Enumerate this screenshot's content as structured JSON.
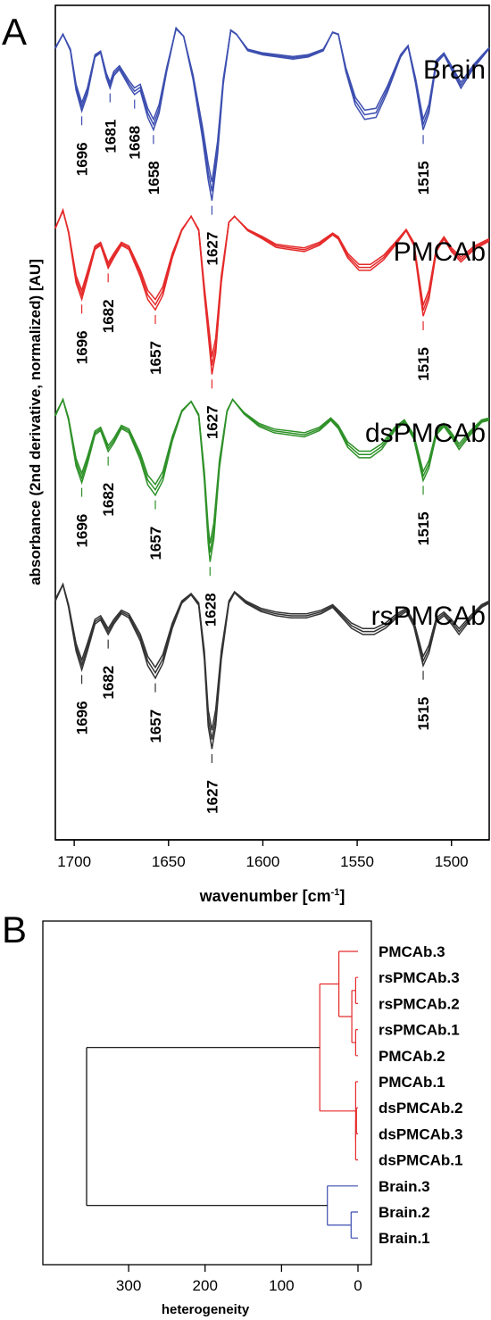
{
  "chart_data": [
    {
      "panel": "A",
      "type": "line",
      "xlabel": "wavenumber [cm",
      "xlabel_sup": "-1",
      "xlabel_end": "]",
      "ylabel": "absorbance (2nd derivative, normalized) [AU]",
      "xlim": [
        1710,
        1480
      ],
      "x_ticks": [
        1700,
        1650,
        1600,
        1550,
        1500
      ],
      "x_reversed": true,
      "grid": false,
      "series": [
        {
          "name": "Brain",
          "color": "#3d4fb0",
          "replicates": 3,
          "points": [
            [
              1710,
              0.55
            ],
            [
              1706,
              0.9
            ],
            [
              1702,
              0.5
            ],
            [
              1699,
              -0.45
            ],
            [
              1696,
              -0.95
            ],
            [
              1693,
              -0.55
            ],
            [
              1689,
              0.35
            ],
            [
              1686,
              0.45
            ],
            [
              1683,
              -0.15
            ],
            [
              1681,
              -0.4
            ],
            [
              1679,
              -0.1
            ],
            [
              1676,
              0.05
            ],
            [
              1671,
              -0.35
            ],
            [
              1668,
              -0.55
            ],
            [
              1665,
              -0.45
            ],
            [
              1661,
              -1.1
            ],
            [
              1658,
              -1.4
            ],
            [
              1655,
              -1.0
            ],
            [
              1651,
              0.0
            ],
            [
              1646,
              1.05
            ],
            [
              1642,
              0.85
            ],
            [
              1637,
              -0.2
            ],
            [
              1632,
              -1.6
            ],
            [
              1629,
              -2.6
            ],
            [
              1627,
              -3.1
            ],
            [
              1624,
              -2.0
            ],
            [
              1621,
              -0.3
            ],
            [
              1617,
              1.0
            ],
            [
              1614,
              0.9
            ],
            [
              1608,
              0.5
            ],
            [
              1600,
              0.4
            ],
            [
              1592,
              0.35
            ],
            [
              1584,
              0.3
            ],
            [
              1576,
              0.35
            ],
            [
              1568,
              0.5
            ],
            [
              1563,
              0.95
            ],
            [
              1560,
              0.9
            ],
            [
              1556,
              0.0
            ],
            [
              1551,
              -0.8
            ],
            [
              1546,
              -1.15
            ],
            [
              1540,
              -1.1
            ],
            [
              1534,
              -0.5
            ],
            [
              1527,
              0.35
            ],
            [
              1523,
              0.6
            ],
            [
              1519,
              -0.3
            ],
            [
              1515,
              -1.4
            ],
            [
              1512,
              -1.0
            ],
            [
              1508,
              0.2
            ],
            [
              1504,
              0.4
            ],
            [
              1500,
              0.05
            ],
            [
              1495,
              -0.4
            ],
            [
              1488,
              0.1
            ],
            [
              1480,
              0.55
            ]
          ],
          "peaks": [
            1696,
            1681,
            1668,
            1658,
            1627,
            1515
          ]
        },
        {
          "name": "PMCAb",
          "color": "#e52a2a",
          "replicates": 3,
          "points": [
            [
              1710,
              0.6
            ],
            [
              1706,
              1.05
            ],
            [
              1703,
              0.5
            ],
            [
              1699,
              -0.7
            ],
            [
              1696,
              -1.1
            ],
            [
              1693,
              -0.6
            ],
            [
              1689,
              0.1
            ],
            [
              1686,
              0.2
            ],
            [
              1682,
              -0.35
            ],
            [
              1679,
              -0.1
            ],
            [
              1675,
              0.2
            ],
            [
              1671,
              0.1
            ],
            [
              1665,
              -0.55
            ],
            [
              1661,
              -1.1
            ],
            [
              1657,
              -1.35
            ],
            [
              1653,
              -1.0
            ],
            [
              1648,
              -0.1
            ],
            [
              1643,
              0.55
            ],
            [
              1638,
              0.9
            ],
            [
              1634,
              0.55
            ],
            [
              1631,
              -1.0
            ],
            [
              1628,
              -2.4
            ],
            [
              1627,
              -2.9
            ],
            [
              1625,
              -2.4
            ],
            [
              1622,
              -0.7
            ],
            [
              1618,
              0.75
            ],
            [
              1615,
              0.9
            ],
            [
              1608,
              0.55
            ],
            [
              1600,
              0.35
            ],
            [
              1593,
              0.15
            ],
            [
              1586,
              0.1
            ],
            [
              1578,
              0.05
            ],
            [
              1570,
              0.2
            ],
            [
              1563,
              0.45
            ],
            [
              1560,
              0.35
            ],
            [
              1555,
              -0.1
            ],
            [
              1549,
              -0.4
            ],
            [
              1543,
              -0.4
            ],
            [
              1536,
              -0.15
            ],
            [
              1529,
              0.25
            ],
            [
              1524,
              0.55
            ],
            [
              1520,
              0.2
            ],
            [
              1515,
              -1.5
            ],
            [
              1512,
              -1.1
            ],
            [
              1508,
              0.05
            ],
            [
              1504,
              0.35
            ],
            [
              1500,
              0.05
            ],
            [
              1495,
              -0.2
            ],
            [
              1488,
              0.1
            ],
            [
              1480,
              0.3
            ]
          ],
          "peaks": [
            1696,
            1682,
            1657,
            1627,
            1515
          ]
        },
        {
          "name": "dsPMCAb",
          "color": "#2e9128",
          "replicates": 3,
          "points": [
            [
              1710,
              0.45
            ],
            [
              1706,
              0.85
            ],
            [
              1703,
              0.35
            ],
            [
              1699,
              -0.75
            ],
            [
              1696,
              -1.15
            ],
            [
              1693,
              -0.7
            ],
            [
              1689,
              0.0
            ],
            [
              1686,
              0.1
            ],
            [
              1682,
              -0.4
            ],
            [
              1679,
              -0.2
            ],
            [
              1675,
              0.15
            ],
            [
              1671,
              0.05
            ],
            [
              1665,
              -0.6
            ],
            [
              1661,
              -1.2
            ],
            [
              1657,
              -1.45
            ],
            [
              1653,
              -1.1
            ],
            [
              1648,
              -0.15
            ],
            [
              1643,
              0.55
            ],
            [
              1638,
              0.8
            ],
            [
              1634,
              0.45
            ],
            [
              1631,
              -1.1
            ],
            [
              1629,
              -2.6
            ],
            [
              1628,
              -3.05
            ],
            [
              1626,
              -2.5
            ],
            [
              1623,
              -0.8
            ],
            [
              1619,
              0.55
            ],
            [
              1616,
              0.85
            ],
            [
              1610,
              0.5
            ],
            [
              1602,
              0.2
            ],
            [
              1594,
              0.05
            ],
            [
              1586,
              0.0
            ],
            [
              1578,
              -0.05
            ],
            [
              1570,
              0.1
            ],
            [
              1564,
              0.35
            ],
            [
              1560,
              0.15
            ],
            [
              1555,
              -0.3
            ],
            [
              1549,
              -0.55
            ],
            [
              1543,
              -0.55
            ],
            [
              1537,
              -0.35
            ],
            [
              1530,
              0.1
            ],
            [
              1525,
              0.3
            ],
            [
              1520,
              -0.1
            ],
            [
              1515,
              -1.1
            ],
            [
              1512,
              -0.8
            ],
            [
              1508,
              0.0
            ],
            [
              1504,
              0.2
            ],
            [
              1500,
              -0.05
            ],
            [
              1496,
              -0.35
            ],
            [
              1490,
              0.0
            ],
            [
              1484,
              0.3
            ],
            [
              1480,
              0.35
            ]
          ],
          "peaks": [
            1696,
            1682,
            1657,
            1628,
            1515
          ]
        },
        {
          "name": "rsPMCAb",
          "color": "#333333",
          "replicates": 3,
          "points": [
            [
              1710,
              0.4
            ],
            [
              1706,
              0.8
            ],
            [
              1703,
              0.25
            ],
            [
              1699,
              -0.8
            ],
            [
              1696,
              -1.25
            ],
            [
              1693,
              -0.8
            ],
            [
              1689,
              -0.15
            ],
            [
              1686,
              -0.05
            ],
            [
              1682,
              -0.4
            ],
            [
              1679,
              -0.15
            ],
            [
              1675,
              0.1
            ],
            [
              1671,
              0.0
            ],
            [
              1665,
              -0.55
            ],
            [
              1661,
              -1.15
            ],
            [
              1657,
              -1.45
            ],
            [
              1653,
              -1.1
            ],
            [
              1648,
              -0.25
            ],
            [
              1643,
              0.35
            ],
            [
              1638,
              0.55
            ],
            [
              1634,
              0.3
            ],
            [
              1631,
              -1.0
            ],
            [
              1629,
              -2.6
            ],
            [
              1627,
              -3.15
            ],
            [
              1625,
              -2.6
            ],
            [
              1622,
              -1.0
            ],
            [
              1618,
              0.35
            ],
            [
              1615,
              0.6
            ],
            [
              1609,
              0.35
            ],
            [
              1601,
              0.15
            ],
            [
              1593,
              0.05
            ],
            [
              1585,
              0.0
            ],
            [
              1577,
              0.0
            ],
            [
              1569,
              0.1
            ],
            [
              1563,
              0.25
            ],
            [
              1559,
              0.05
            ],
            [
              1553,
              -0.25
            ],
            [
              1547,
              -0.4
            ],
            [
              1541,
              -0.4
            ],
            [
              1535,
              -0.25
            ],
            [
              1529,
              0.0
            ],
            [
              1524,
              0.15
            ],
            [
              1520,
              -0.2
            ],
            [
              1515,
              -1.15
            ],
            [
              1512,
              -0.85
            ],
            [
              1508,
              -0.1
            ],
            [
              1504,
              0.05
            ],
            [
              1500,
              -0.15
            ],
            [
              1496,
              -0.4
            ],
            [
              1490,
              -0.05
            ],
            [
              1484,
              0.25
            ],
            [
              1480,
              0.35
            ]
          ],
          "peaks": [
            1696,
            1682,
            1657,
            1627,
            1515
          ]
        }
      ]
    },
    {
      "panel": "B",
      "type": "dendrogram",
      "xlabel": "heterogeneity",
      "xlim": [
        390,
        -2
      ],
      "x_ticks": [
        300,
        200,
        100,
        0
      ],
      "grid": false,
      "leaves": [
        "PMCAb.3",
        "rsPMCAb.3",
        "rsPMCAb.2",
        "rsPMCAb.1",
        "PMCAb.2",
        "PMCAb.1",
        "dsPMCAb.2",
        "dsPMCAb.3",
        "dsPMCAb.1",
        "Brain.3",
        "Brain.2",
        "Brain.1"
      ],
      "merges": [
        {
          "id": "m1",
          "a": "leaf:1",
          "b": "leaf:2",
          "height": 3,
          "color": "#e52a2a"
        },
        {
          "id": "m2",
          "a": "leaf:3",
          "b": "leaf:4",
          "height": 3,
          "color": "#e52a2a"
        },
        {
          "id": "m3",
          "a": "m1",
          "b": "m2",
          "height": 8,
          "color": "#e52a2a"
        },
        {
          "id": "m4",
          "a": "leaf:0",
          "b": "m3",
          "height": 25,
          "color": "#e52a2a"
        },
        {
          "id": "m5",
          "a": "leaf:6",
          "b": "leaf:7",
          "height": 2,
          "color": "#e52a2a"
        },
        {
          "id": "m6",
          "a": "m5",
          "b": "leaf:8",
          "height": 3,
          "color": "#e52a2a"
        },
        {
          "id": "m7",
          "a": "leaf:5",
          "b": "m6",
          "height": 3,
          "color": "#e52a2a"
        },
        {
          "id": "m8",
          "a": "m4",
          "b": "m7",
          "height": 50,
          "color": "#e52a2a"
        },
        {
          "id": "m9",
          "a": "leaf:10",
          "b": "leaf:11",
          "height": 9,
          "color": "#3d4fb0"
        },
        {
          "id": "m10",
          "a": "leaf:9",
          "b": "m9",
          "height": 40,
          "color": "#3d4fb0"
        },
        {
          "id": "m11",
          "a": "m8",
          "b": "m10",
          "height": 355,
          "color": "#000000"
        }
      ]
    }
  ],
  "panel_letters": {
    "a": "A",
    "b": "B"
  }
}
